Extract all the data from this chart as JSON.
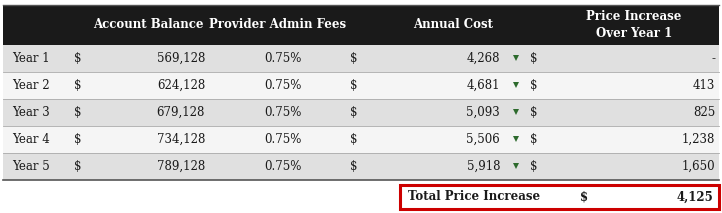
{
  "rows": [
    [
      "Year 1",
      "$",
      "569,128",
      "0.75%",
      "$",
      "4,268",
      "$",
      "-"
    ],
    [
      "Year 2",
      "$",
      "624,128",
      "0.75%",
      "$",
      "4,681",
      "$",
      "413"
    ],
    [
      "Year 3",
      "$",
      "679,128",
      "0.75%",
      "$",
      "5,093",
      "$",
      "825"
    ],
    [
      "Year 4",
      "$",
      "734,128",
      "0.75%",
      "$",
      "5,506",
      "$",
      "1,238"
    ],
    [
      "Year 5",
      "$",
      "789,128",
      "0.75%",
      "$",
      "5,918",
      "$",
      "1,650"
    ]
  ],
  "total_label": "Total Price Increase",
  "total_dollar": "$",
  "total_value": "4,125",
  "header_bg": "#1a1a1a",
  "header_fg": "#ffffff",
  "row_bg_odd": "#e0e0e0",
  "row_bg_even": "#f5f5f5",
  "total_box_color": "#cc0000",
  "green_marker_color": "#2d6a2d",
  "font_size": 8.5,
  "header_font_size": 8.5
}
